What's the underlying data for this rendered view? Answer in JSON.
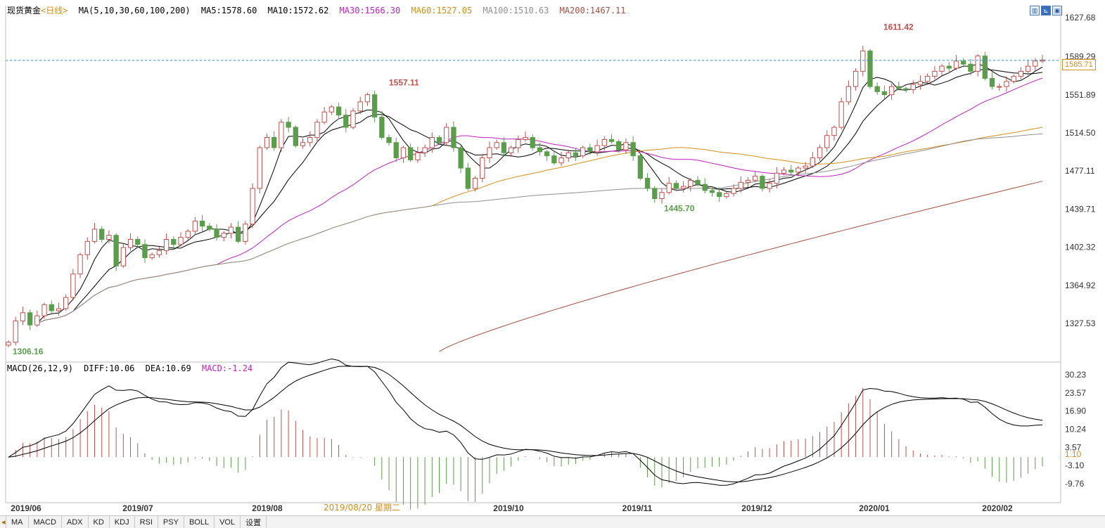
{
  "price_legend": {
    "name": "现货黄金",
    "period": "<日线>",
    "ma_params": "MA(5,10,30,60,100,200)",
    "ma5": "MA5:1578.60",
    "ma10": "MA10:1572.62",
    "ma30": "MA30:1566.30",
    "ma60": "MA60:1527.05",
    "ma100": "MA100:1510.63",
    "ma200": "MA200:1467.11"
  },
  "macd_legend": {
    "params": "MACD(26,12,9)",
    "diff": "DIFF:10.06",
    "dea": "DEA:10.69",
    "macd": "MACD:-1.24"
  },
  "current_price_label": "1585.71",
  "crosshair_date_label": "2019/08/20 星期二",
  "annotations": {
    "high_1": "1557.11",
    "low_1": "1445.70",
    "high_2": "1611.42",
    "start_low": "1306.16"
  },
  "tabs": [
    "MA",
    "MACD",
    "ADX",
    "KD",
    "KDJ",
    "RSI",
    "PSY",
    "BOLL",
    "VOL",
    "设置"
  ],
  "colors": {
    "up": "#c0504d",
    "down": "#5a9e4b",
    "ma5": "#000000",
    "ma10": "#000000",
    "ma30": "#c020c0",
    "ma60": "#d4901a",
    "ma100": "#909090",
    "ma200": "#a05040",
    "price_line": "#3a8fd0",
    "grid": "#d8d8d8"
  },
  "chart_data": [
    {
      "type": "candlestick",
      "title": "现货黄金 日线",
      "x_ticks": [
        "2019/06",
        "2019/07",
        "2019/08",
        "2019/10",
        "2019/11",
        "2019/12",
        "2020/01",
        "2020/02"
      ],
      "y_ticks": [
        1627.68,
        1589.29,
        1551.89,
        1514.5,
        1477.11,
        1439.71,
        1402.32,
        1364.92,
        1327.53
      ],
      "ylim": [
        1298,
        1634
      ],
      "current_price": 1585.71,
      "candles_ohlc_start": 1306.16,
      "key_points": [
        {
          "label": "1306.16",
          "value": 1306.16,
          "kind": "low",
          "date": "2019/06"
        },
        {
          "label": "1557.11",
          "value": 1557.11,
          "kind": "high",
          "date": "2019/09"
        },
        {
          "label": "1445.70",
          "value": 1445.7,
          "kind": "low",
          "date": "2019/11"
        },
        {
          "label": "1611.42",
          "value": 1611.42,
          "kind": "high",
          "date": "2020/01"
        }
      ],
      "close_path": [
        1309,
        1330,
        1338,
        1326,
        1335,
        1346,
        1340,
        1342,
        1353,
        1376,
        1395,
        1408,
        1420,
        1410,
        1414,
        1384,
        1402,
        1410,
        1405,
        1392,
        1395,
        1399,
        1410,
        1405,
        1412,
        1418,
        1428,
        1423,
        1420,
        1412,
        1416,
        1422,
        1408,
        1425,
        1460,
        1500,
        1510,
        1500,
        1525,
        1520,
        1502,
        1505,
        1510,
        1525,
        1535,
        1540,
        1532,
        1520,
        1536,
        1545,
        1552,
        1530,
        1510,
        1505,
        1490,
        1500,
        1488,
        1495,
        1500,
        1510,
        1505,
        1520,
        1500,
        1480,
        1460,
        1470,
        1490,
        1500,
        1505,
        1495,
        1500,
        1508,
        1510,
        1500,
        1496,
        1492,
        1485,
        1490,
        1495,
        1492,
        1500,
        1496,
        1502,
        1508,
        1506,
        1498,
        1505,
        1492,
        1470,
        1460,
        1450,
        1456,
        1465,
        1460,
        1462,
        1468,
        1464,
        1458,
        1456,
        1452,
        1455,
        1460,
        1466,
        1468,
        1472,
        1460,
        1465,
        1475,
        1478,
        1476,
        1480,
        1482,
        1490,
        1500,
        1512,
        1520,
        1545,
        1560,
        1575,
        1595,
        1560,
        1555,
        1552,
        1560,
        1558,
        1557,
        1562,
        1565,
        1570,
        1575,
        1580,
        1578,
        1585,
        1582,
        1575,
        1590,
        1568,
        1560,
        1560,
        1565,
        1570,
        1575,
        1580,
        1585,
        1586
      ],
      "series": [
        {
          "name": "MA5",
          "last": 1578.6
        },
        {
          "name": "MA10",
          "last": 1572.62
        },
        {
          "name": "MA30",
          "last": 1566.3
        },
        {
          "name": "MA60",
          "last": 1527.05
        },
        {
          "name": "MA100",
          "last": 1510.63
        },
        {
          "name": "MA200",
          "last": 1467.11
        }
      ],
      "legend": "top-left",
      "grid": false
    },
    {
      "type": "line",
      "title": "MACD(26,12,9)",
      "y_ticks": [
        30.23,
        23.57,
        16.9,
        10.24,
        3.57,
        -3.1,
        -9.76
      ],
      "ylim": [
        -15,
        33
      ],
      "series": [
        {
          "name": "DIFF",
          "last": 10.06
        },
        {
          "name": "DEA",
          "last": 10.69
        },
        {
          "name": "MACD",
          "last": -1.24
        }
      ],
      "highlight_tick": 1.1,
      "legend": "top-left"
    }
  ]
}
